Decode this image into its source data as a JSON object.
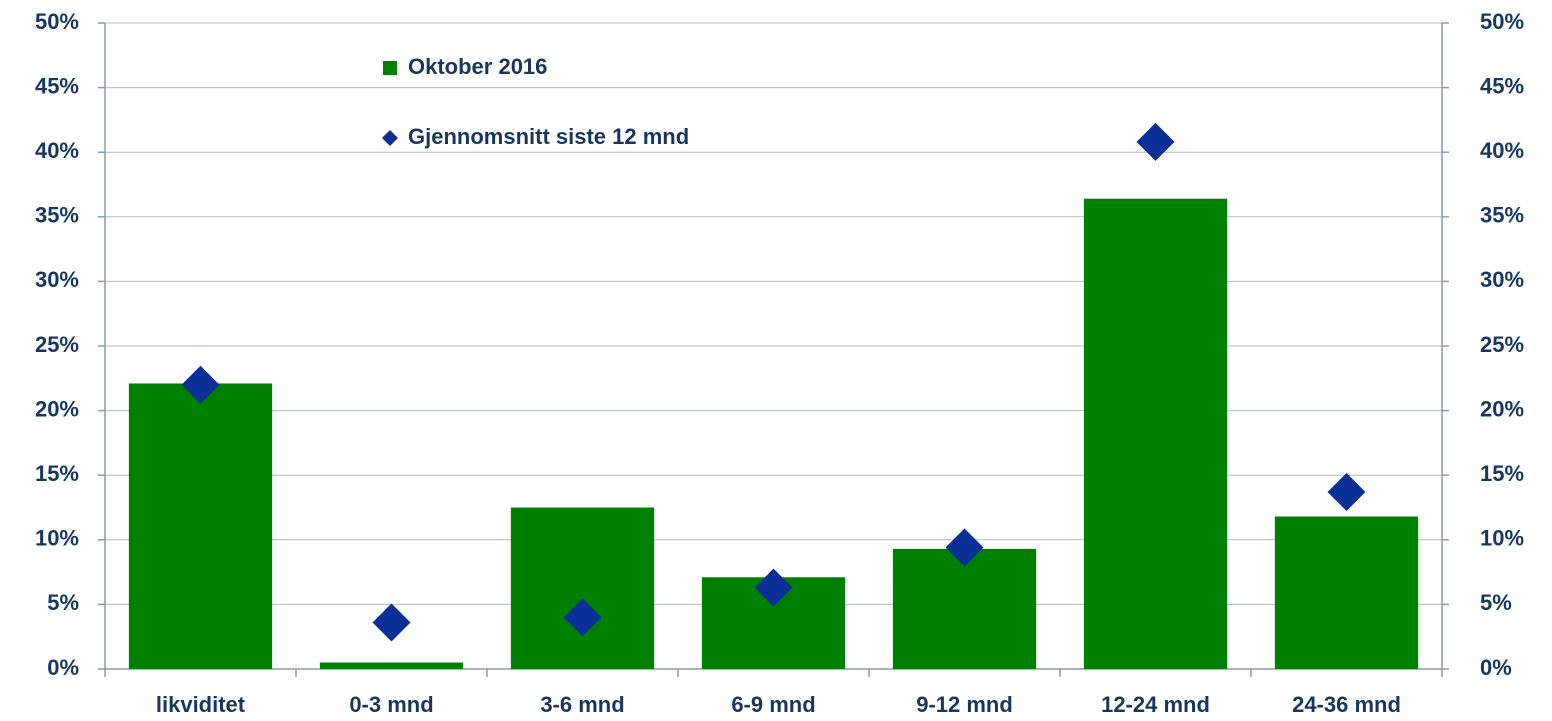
{
  "chart_data": {
    "type": "bar",
    "categories": [
      "likviditet",
      "0-3 mnd",
      "3-6 mnd",
      "6-9 mnd",
      "9-12 mnd",
      "12-24 mnd",
      "24-36 mnd"
    ],
    "series": [
      {
        "name": "Oktober 2016",
        "type": "bar",
        "color": "#008000",
        "values": [
          22.1,
          0.5,
          12.5,
          7.1,
          9.3,
          36.4,
          11.8
        ]
      },
      {
        "name": "Gjennomsnitt siste 12 mnd",
        "type": "scatter",
        "marker": "diamond",
        "axis": "y2",
        "color": "#0a2f96",
        "values": [
          22.0,
          3.6,
          4.0,
          6.3,
          9.4,
          40.8,
          13.7
        ]
      }
    ],
    "ylim": [
      0,
      50
    ],
    "yticks": [
      {
        "value": 0,
        "label": "0%"
      },
      {
        "value": 5,
        "label": "5%"
      },
      {
        "value": 10,
        "label": "10%"
      },
      {
        "value": 15,
        "label": "15%"
      },
      {
        "value": 20,
        "label": "20%"
      },
      {
        "value": 25,
        "label": "25%"
      },
      {
        "value": 30,
        "label": "30%"
      },
      {
        "value": 35,
        "label": "35%"
      },
      {
        "value": 40,
        "label": "40%"
      },
      {
        "value": 45,
        "label": "45%"
      },
      {
        "value": 50,
        "label": "50%"
      }
    ],
    "y2lim": [
      0,
      50
    ],
    "y2ticks": [
      {
        "value": 0,
        "label": "0%"
      },
      {
        "value": 5,
        "label": "5%"
      },
      {
        "value": 10,
        "label": "10%"
      },
      {
        "value": 15,
        "label": "15%"
      },
      {
        "value": 20,
        "label": "20%"
      },
      {
        "value": 25,
        "label": "25%"
      },
      {
        "value": 30,
        "label": "30%"
      },
      {
        "value": 35,
        "label": "35%"
      },
      {
        "value": 40,
        "label": "40%"
      },
      {
        "value": 45,
        "label": "45%"
      },
      {
        "value": 50,
        "label": "50%"
      }
    ],
    "grid": true
  }
}
